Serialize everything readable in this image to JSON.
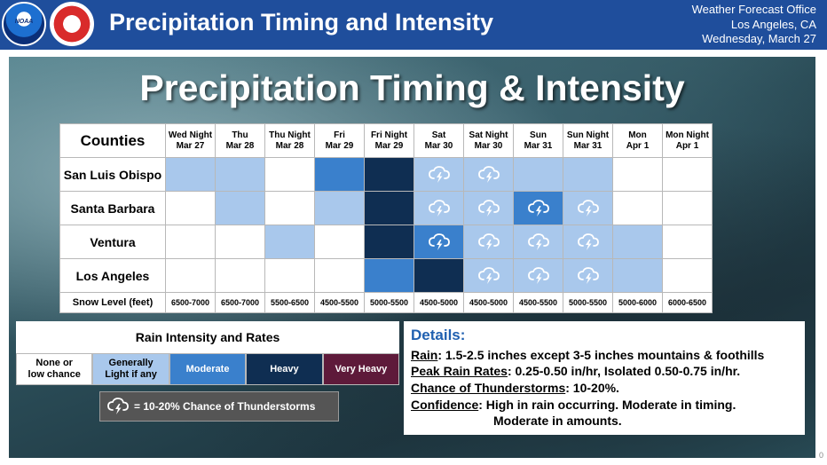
{
  "header": {
    "title": "Precipitation Timing and Intensity",
    "office_line1": "Weather Forecast Office",
    "office_line2": "Los Angeles, CA",
    "date": "Wednesday, March 27",
    "logos": [
      "noaa-logo",
      "nws-logo"
    ],
    "logo_text": {
      "noaa": "NOAA"
    }
  },
  "panel_title": "Precipitation Timing & Intensity",
  "table": {
    "corner_label": "Counties",
    "periods": [
      {
        "line1": "Wed Night",
        "line2": "Mar 27"
      },
      {
        "line1": "Thu",
        "line2": "Mar 28"
      },
      {
        "line1": "Thu Night",
        "line2": "Mar 28"
      },
      {
        "line1": "Fri",
        "line2": "Mar 29"
      },
      {
        "line1": "Fri Night",
        "line2": "Mar 29"
      },
      {
        "line1": "Sat",
        "line2": "Mar 30"
      },
      {
        "line1": "Sat Night",
        "line2": "Mar 30"
      },
      {
        "line1": "Sun",
        "line2": "Mar 31"
      },
      {
        "line1": "Sun Night",
        "line2": "Mar 31"
      },
      {
        "line1": "Mon",
        "line2": "Apr 1"
      },
      {
        "line1": "Mon Night",
        "line2": "Apr 1"
      }
    ],
    "rows": [
      {
        "county": "San Luis Obispo",
        "levels": [
          1,
          1,
          0,
          2,
          3,
          1,
          1,
          1,
          1,
          0,
          0
        ],
        "thunder": [
          0,
          0,
          0,
          0,
          0,
          1,
          1,
          0,
          0,
          0,
          0
        ]
      },
      {
        "county": "Santa Barbara",
        "levels": [
          0,
          1,
          0,
          1,
          3,
          1,
          1,
          2,
          1,
          0,
          0
        ],
        "thunder": [
          0,
          0,
          0,
          0,
          0,
          1,
          1,
          1,
          1,
          0,
          0
        ]
      },
      {
        "county": "Ventura",
        "levels": [
          0,
          0,
          1,
          0,
          3,
          2,
          1,
          1,
          1,
          1,
          0
        ],
        "thunder": [
          0,
          0,
          0,
          0,
          0,
          1,
          1,
          1,
          1,
          0,
          0
        ]
      },
      {
        "county": "Los Angeles",
        "levels": [
          0,
          0,
          0,
          0,
          2,
          3,
          1,
          1,
          1,
          1,
          0
        ],
        "thunder": [
          0,
          0,
          0,
          0,
          0,
          0,
          1,
          1,
          1,
          0,
          0
        ]
      }
    ],
    "snow_label": "Snow Level (feet)",
    "snow_levels": [
      "6500-7000",
      "6500-7000",
      "5500-6500",
      "4500-5500",
      "5000-5500",
      "4500-5000",
      "4500-5000",
      "4500-5500",
      "5000-5500",
      "5000-6000",
      "6000-6500"
    ]
  },
  "legend": {
    "title": "Rain Intensity and Rates",
    "categories": [
      {
        "line1": "None or",
        "line2": "low chance"
      },
      {
        "line1": "Generally",
        "line2": "Light if any"
      },
      {
        "line1": "Moderate",
        "line2": ""
      },
      {
        "line1": "Heavy",
        "line2": ""
      },
      {
        "line1": "Very Heavy",
        "line2": ""
      }
    ],
    "colors": [
      "#ffffff",
      "#a9c8ec",
      "#3a80cc",
      "#0f2e52",
      "#5e1a3a"
    ],
    "thunder_text": "=  10-20% Chance of Thunderstorms",
    "thunder_icon": "thunderstorm-icon"
  },
  "details": {
    "title": "Details:",
    "rain_label": "Rain",
    "rain_text": ": 1.5-2.5 inches except 3-5 inches mountains & foothills",
    "peak_label": "Peak Rain Rates",
    "peak_text": ": 0.25-0.50 in/hr, Isolated 0.50-0.75 in/hr.",
    "thunder_label": "Chance of Thunderstorms",
    "thunder_text": ": 10-20%.",
    "confidence_label": "Confidence",
    "confidence_text": ": High in rain occurring. Moderate in timing.",
    "confidence_text2": "Moderate in amounts."
  },
  "page_number": "0"
}
